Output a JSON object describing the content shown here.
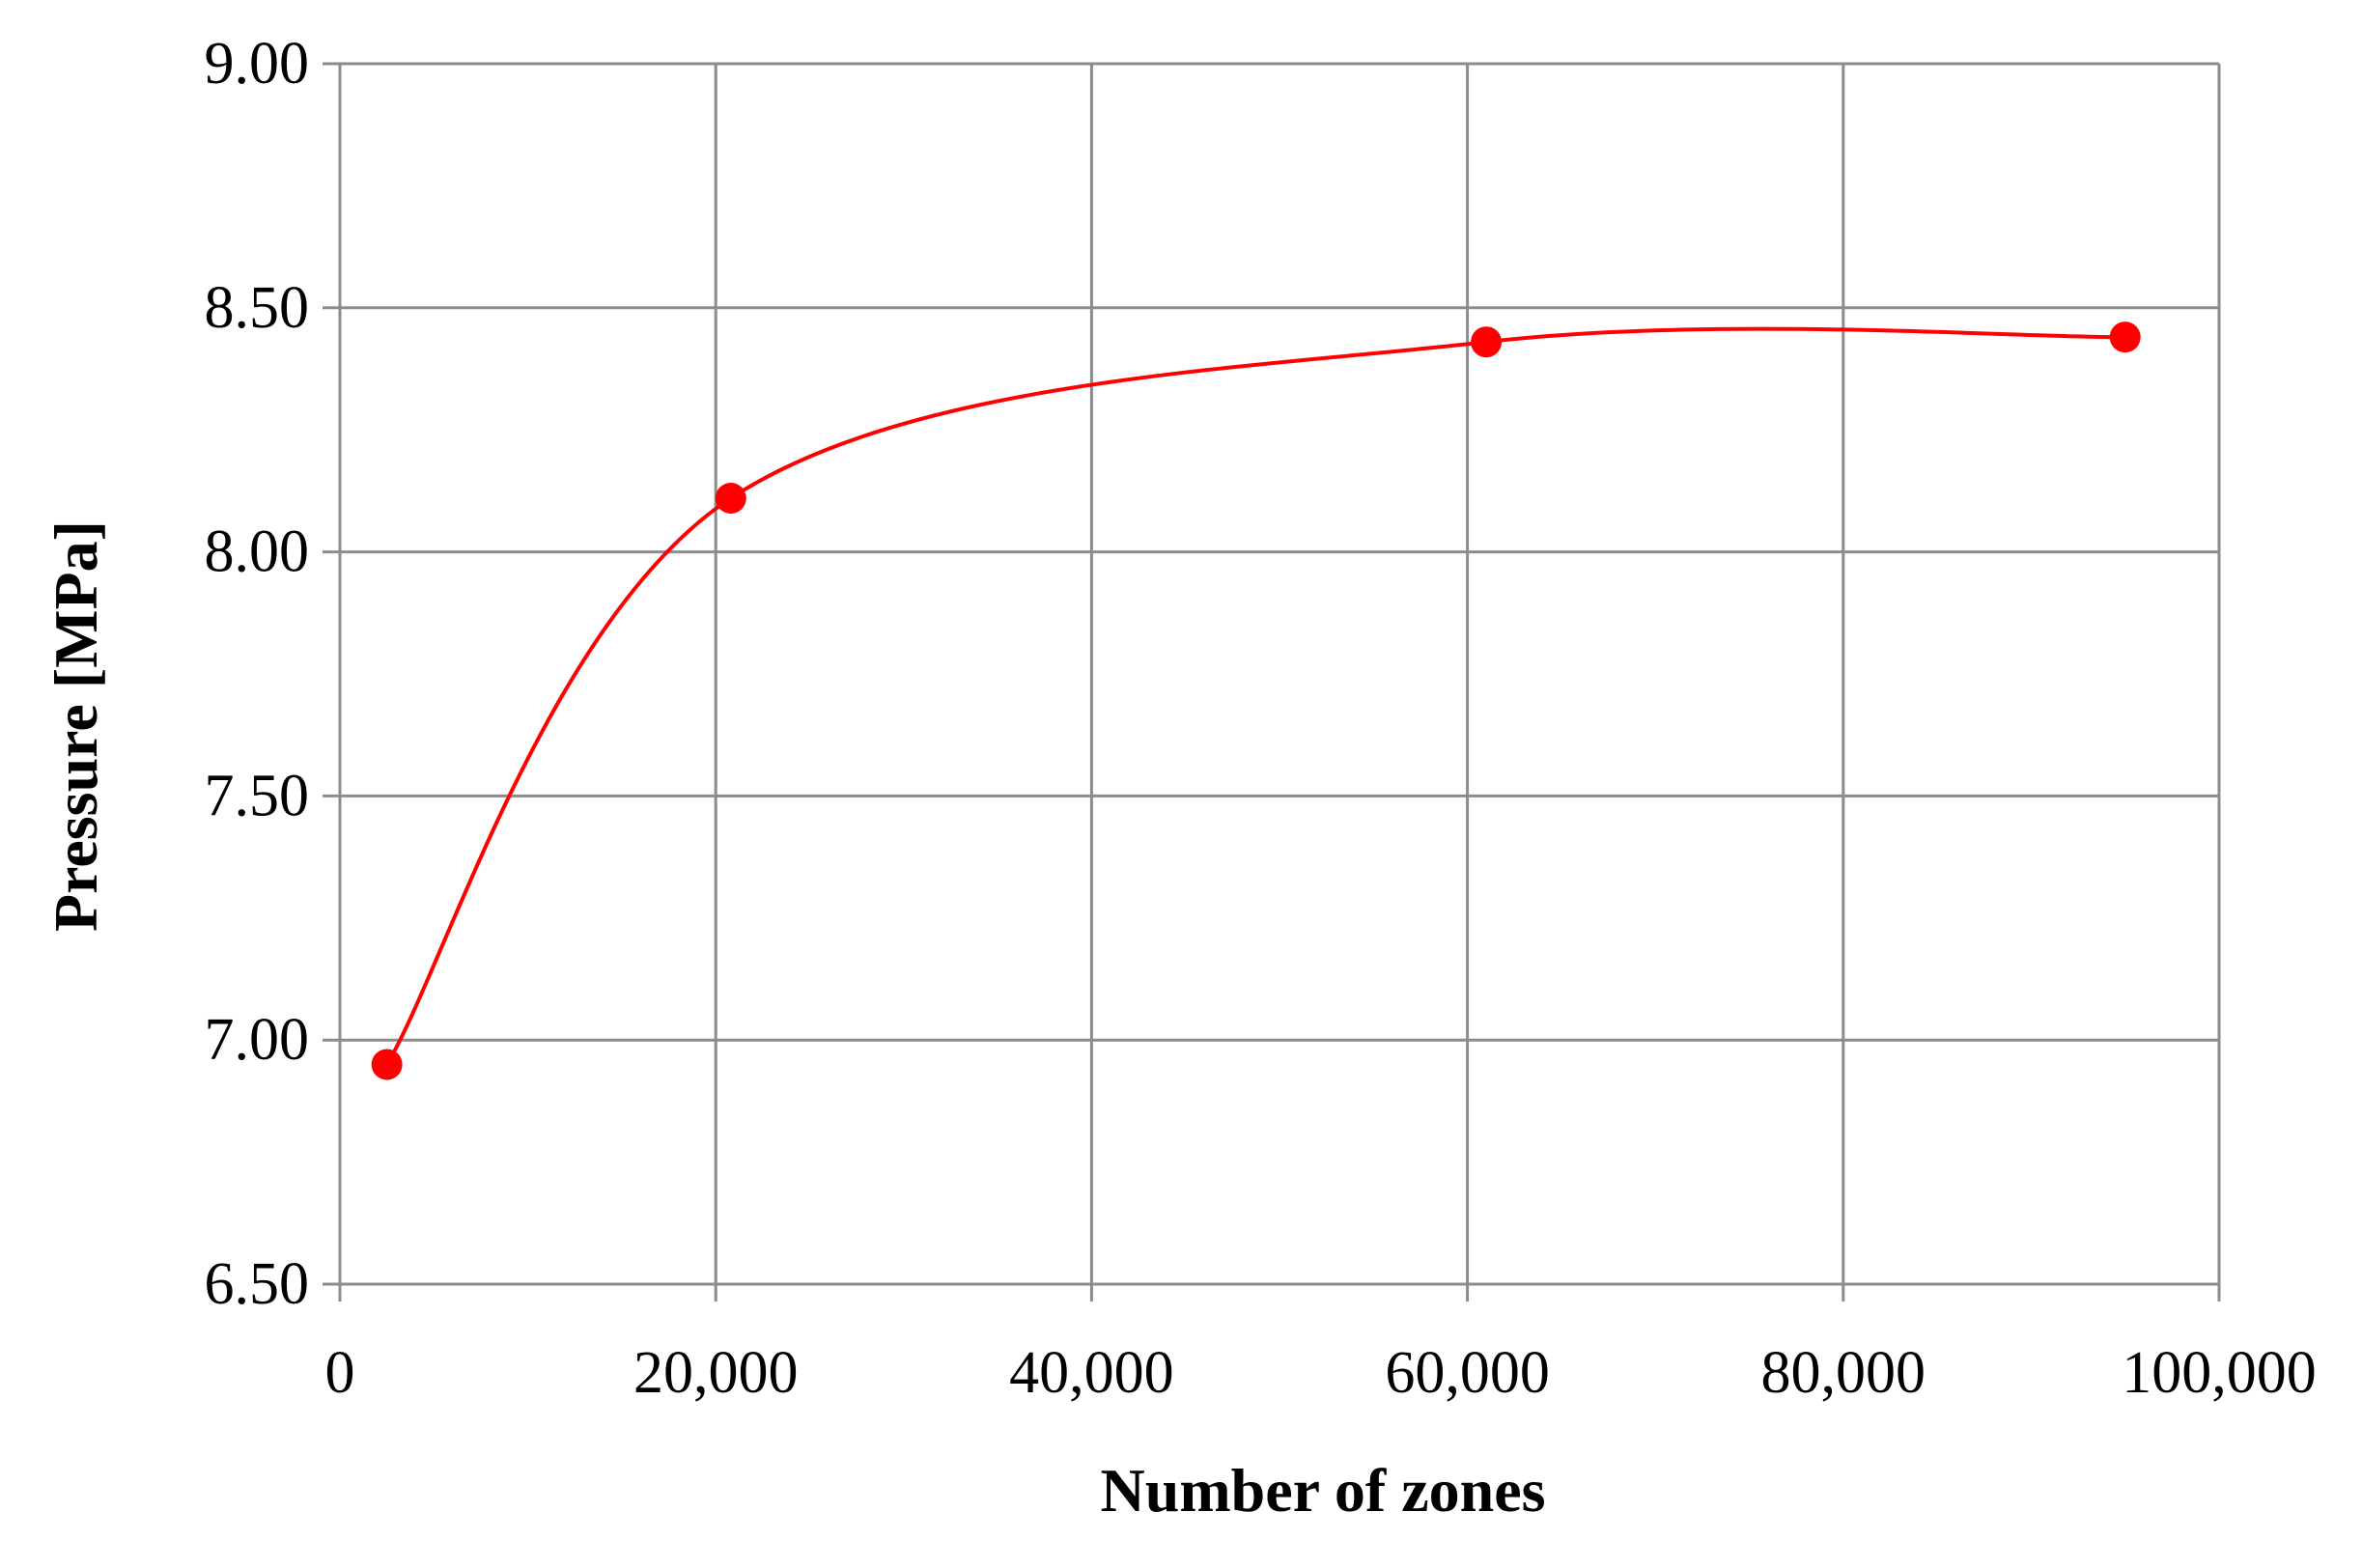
{
  "chart_data": {
    "type": "line",
    "title": "",
    "xlabel": "Number of zones",
    "ylabel": "Pressure [MPa]",
    "xlim": [
      0,
      100000
    ],
    "ylim": [
      6.5,
      9.0
    ],
    "grid": true,
    "smooth": true,
    "x_ticks": [
      {
        "value": 0,
        "label": "0"
      },
      {
        "value": 20000,
        "label": "20,000"
      },
      {
        "value": 40000,
        "label": "40,000"
      },
      {
        "value": 60000,
        "label": "60,000"
      },
      {
        "value": 80000,
        "label": "80,000"
      },
      {
        "value": 100000,
        "label": "100,000"
      }
    ],
    "y_ticks": [
      {
        "value": 6.5,
        "label": "6.50"
      },
      {
        "value": 7.0,
        "label": "7.00"
      },
      {
        "value": 7.5,
        "label": "7.50"
      },
      {
        "value": 8.0,
        "label": "8.00"
      },
      {
        "value": 8.5,
        "label": "8.50"
      },
      {
        "value": 9.0,
        "label": "9.00"
      }
    ],
    "series": [
      {
        "color": "#ff0000",
        "x": [
          2500,
          20800,
          61000,
          95000
        ],
        "y": [
          6.95,
          8.11,
          8.43,
          8.44
        ]
      }
    ]
  }
}
